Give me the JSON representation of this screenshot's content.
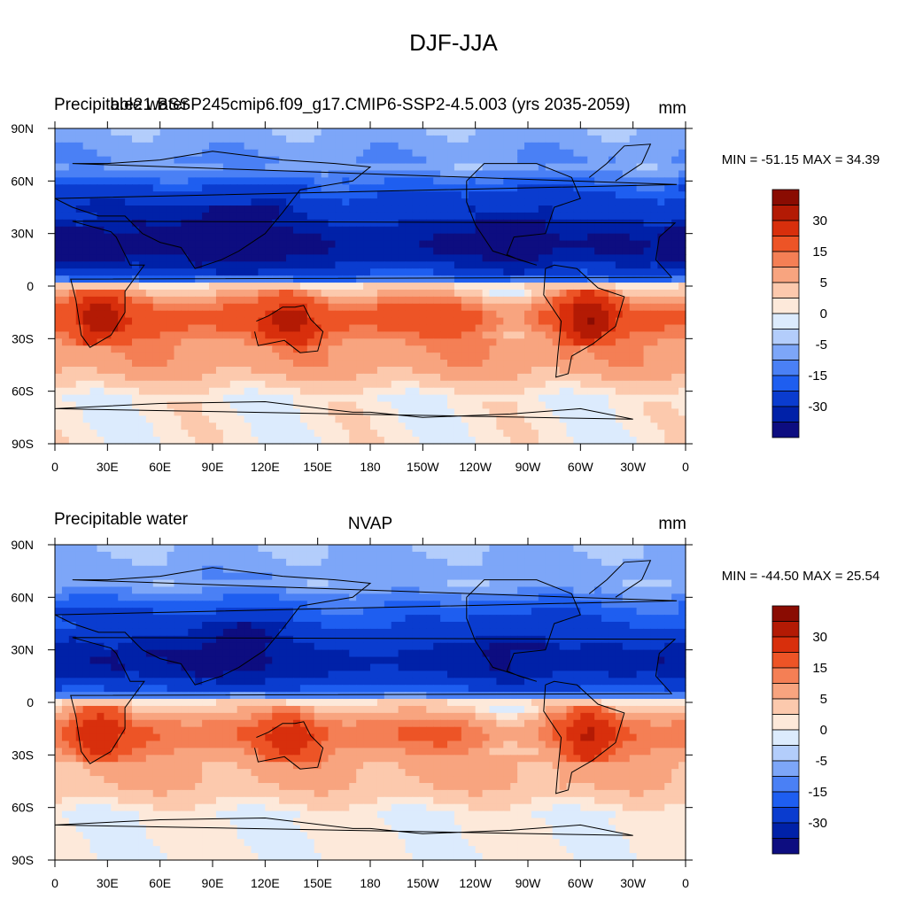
{
  "figure_title": "DJF-JJA",
  "chart_data": [
    {
      "type": "heatmap",
      "left_title": "Precipitable water",
      "center_title": "b.e21.BSSP245cmip6.f09_g17.CMIP6-SSP2-4.5.003 (yrs 2035-2059)",
      "units": "mm",
      "min_max_label": "MIN = -51.15 MAX =  34.39",
      "min": -51.15,
      "max": 34.39,
      "lon_labels": [
        "0",
        "30E",
        "60E",
        "90E",
        "120E",
        "150E",
        "180",
        "150W",
        "120W",
        "90W",
        "60W",
        "30W",
        "0"
      ],
      "lat_labels": [
        "90N",
        "60N",
        "30N",
        "0",
        "30S",
        "60S",
        "90S"
      ],
      "colorbar_labels": [
        "30",
        "15",
        "5",
        "0",
        "-5",
        "-15",
        "-30"
      ],
      "colorbar_levels": [
        -50,
        -40,
        -30,
        -20,
        -15,
        -10,
        -5,
        -2,
        2,
        5,
        10,
        15,
        20,
        30,
        40,
        50
      ],
      "colorbar_colors": [
        "#0d0d80",
        "#0021a8",
        "#0a3ccf",
        "#1e5ef0",
        "#4a80f5",
        "#7da6f8",
        "#b3cdfb",
        "#dcebfd",
        "#fde9da",
        "#fcc9ad",
        "#f8a47f",
        "#f47f55",
        "#ed5426",
        "#d82f0c",
        "#b31a04",
        "#8a0c02"
      ],
      "field": {
        "zonal_base": "djf_jja_model",
        "ampl": 1.0
      }
    },
    {
      "type": "heatmap",
      "left_title": "Precipitable water",
      "center_title": "NVAP",
      "units": "mm",
      "min_max_label": "MIN = -44.50 MAX =  25.54",
      "min": -44.5,
      "max": 25.54,
      "lon_labels": [
        "0",
        "30E",
        "60E",
        "90E",
        "120E",
        "150E",
        "180",
        "150W",
        "120W",
        "90W",
        "60W",
        "30W",
        "0"
      ],
      "lat_labels": [
        "90N",
        "60N",
        "30N",
        "0",
        "30S",
        "60S",
        "90S"
      ],
      "colorbar_labels": [
        "30",
        "15",
        "5",
        "0",
        "-5",
        "-15",
        "-30"
      ],
      "colorbar_levels": [
        -50,
        -40,
        -30,
        -20,
        -15,
        -10,
        -5,
        -2,
        2,
        5,
        10,
        15,
        20,
        30,
        40,
        50
      ],
      "colorbar_colors": [
        "#0d0d80",
        "#0021a8",
        "#0a3ccf",
        "#1e5ef0",
        "#4a80f5",
        "#7da6f8",
        "#b3cdfb",
        "#dcebfd",
        "#fde9da",
        "#fcc9ad",
        "#f8a47f",
        "#f47f55",
        "#ed5426",
        "#d82f0c",
        "#b31a04",
        "#8a0c02"
      ],
      "field": {
        "zonal_base": "djf_jja_obs",
        "ampl": 0.82
      }
    }
  ]
}
